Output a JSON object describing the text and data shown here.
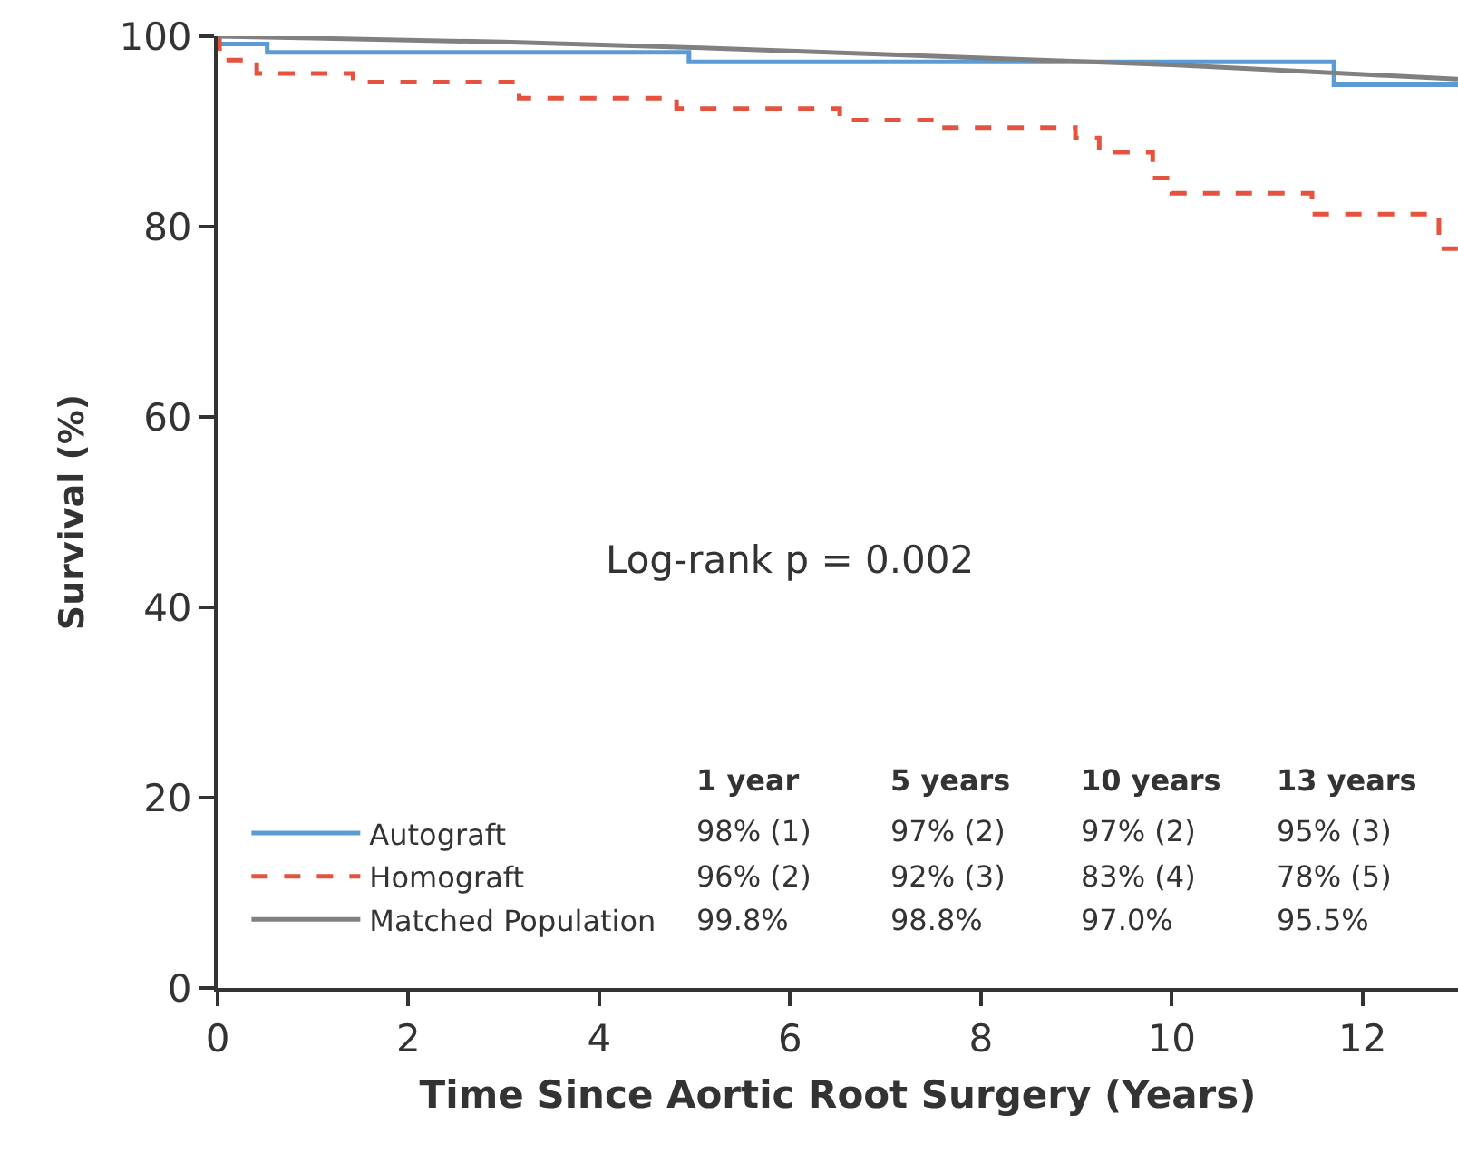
{
  "chart_data": {
    "type": "step",
    "xlabel": "Time Since Aortic Root Surgery (Years)",
    "ylabel": "Survival (%)",
    "xlim": [
      0,
      13
    ],
    "ylim": [
      0,
      100
    ],
    "xticks": [
      0,
      2,
      4,
      6,
      8,
      10,
      12
    ],
    "yticks": [
      0,
      20,
      40,
      60,
      80,
      100
    ],
    "grid": false,
    "legend": "bottom left",
    "marker": "none",
    "series": [
      {
        "name": "Autograft",
        "type": "step",
        "color": "#5b9bd5",
        "line_style": "solid",
        "x": [
          0,
          0.52,
          4.94,
          11.7,
          13
        ],
        "values": [
          99.2,
          98.3,
          97.3,
          94.9,
          94.9
        ]
      },
      {
        "name": "Homograft",
        "type": "step",
        "color": "#e5533f",
        "line_style": "dashed",
        "x": [
          0,
          0.02,
          0.41,
          1.42,
          3.16,
          4.81,
          6.52,
          7.53,
          8.99,
          9.24,
          9.8,
          10.0,
          11.47,
          12.8,
          13
        ],
        "values": [
          100,
          97.5,
          96.1,
          95.2,
          93.5,
          92.4,
          91.2,
          90.4,
          89.3,
          87.8,
          85.1,
          83.5,
          81.3,
          77.7,
          77.7
        ]
      },
      {
        "name": "Matched Population",
        "type": "line",
        "color": "#808080",
        "line_style": "solid",
        "x": [
          0,
          1,
          3,
          5,
          7,
          10,
          12,
          13
        ],
        "values": [
          100,
          99.8,
          99.4,
          98.8,
          98.1,
          97.0,
          96.0,
          95.5
        ]
      }
    ],
    "annotations": [
      "Log-rank p = 0.002",
      "1 year",
      "5 years",
      "10 years",
      "13 years",
      "98% (1)",
      "97% (2)",
      "97% (2)",
      "95% (3)",
      "96% (2)",
      "92% (3)",
      "83% (4)",
      "78% (5)",
      "99.8%",
      "98.8%",
      "97.0%",
      "95.5%"
    ]
  }
}
